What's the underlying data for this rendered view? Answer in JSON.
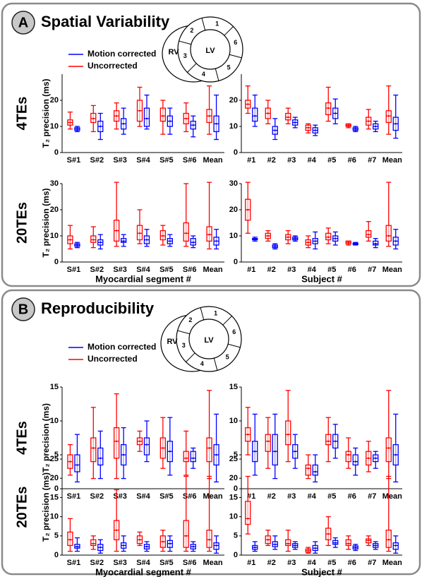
{
  "sections": [
    {
      "letter": "A",
      "title": "Spatial Variability",
      "rows": [
        "4TEs",
        "20TEs"
      ],
      "diagram": {
        "rv": "RV",
        "lv": "LV",
        "segments": [
          1,
          2,
          3,
          4,
          5,
          6
        ]
      }
    },
    {
      "letter": "B",
      "title": "Reproducibility",
      "rows": [
        "4TEs",
        "20TEs"
      ],
      "diagram": {
        "rv": "RV",
        "lv": "LV",
        "segments": [
          1,
          2,
          3,
          4,
          5,
          6
        ]
      }
    }
  ],
  "chart_data": [
    {
      "type": "box",
      "ylabel": "T₂ precision (ms)",
      "legend": "upper left",
      "categories": [
        "S#1",
        "S#2",
        "S#3",
        "S#4",
        "S#5",
        "S#6",
        "Mean"
      ],
      "series": [
        {
          "name": "Motion corrected",
          "color": "#0000ff",
          "values": [
            [
              8,
              8.5,
              9,
              9.5,
              10
            ],
            [
              5,
              8,
              10,
              12,
              15
            ],
            [
              7,
              9,
              11,
              13,
              17
            ],
            [
              9,
              10,
              13,
              17,
              22
            ],
            [
              7,
              10,
              12,
              14,
              17
            ],
            [
              6,
              9,
              10.5,
              12,
              14
            ],
            [
              5,
              8,
              11,
              14,
              22
            ]
          ]
        },
        {
          "name": "Uncorrected",
          "color": "#ff0000",
          "values": [
            [
              9,
              10.5,
              11.5,
              12.5,
              15.5
            ],
            [
              8,
              11.5,
              13,
              15,
              18
            ],
            [
              9,
              12,
              14,
              16,
              19
            ],
            [
              10,
              12,
              16,
              20,
              25
            ],
            [
              7,
              12,
              14,
              17,
              20
            ],
            [
              8,
              11,
              13,
              15,
              19
            ],
            [
              7,
              11.5,
              14,
              16.5,
              25.5
            ]
          ]
        }
      ],
      "ylim": [
        0,
        30
      ],
      "yticks": [
        0,
        10,
        20
      ]
    },
    {
      "type": "box",
      "categories": [
        "#1",
        "#2",
        "#3",
        "#4",
        "#5",
        "#6",
        "#7",
        "Mean"
      ],
      "series": [
        {
          "color": "#0000ff",
          "values": [
            [
              10,
              12,
              14,
              17,
              22
            ],
            [
              5,
              7,
              8.5,
              10,
              13
            ],
            [
              9.5,
              10.5,
              11.5,
              12.5,
              13.5
            ],
            [
              6.5,
              7.5,
              8.5,
              9.5,
              10.5
            ],
            [
              11,
              13,
              15,
              17,
              20.5
            ],
            [
              8,
              8.5,
              9,
              9.5,
              10
            ],
            [
              8,
              9,
              10,
              11,
              12
            ],
            [
              5.5,
              8.5,
              11,
              13.5,
              22
            ]
          ]
        },
        {
          "color": "#ff0000",
          "values": [
            [
              15,
              17,
              18.5,
              20,
              25.5
            ],
            [
              11,
              13,
              15,
              17,
              20
            ],
            [
              11,
              12.5,
              13.5,
              15,
              17
            ],
            [
              7.5,
              8.5,
              9.5,
              10.5,
              11
            ],
            [
              12,
              14.5,
              17,
              19,
              25
            ],
            [
              9.5,
              10,
              10.3,
              10.8,
              11
            ],
            [
              9,
              10.5,
              12,
              13.5,
              16.5
            ],
            [
              7,
              11.5,
              14,
              16,
              25.5
            ]
          ]
        }
      ],
      "ylim": [
        0,
        30
      ],
      "yticks": [
        0,
        10,
        20
      ]
    },
    {
      "type": "box",
      "ylabel": "T₂ precision (ms)",
      "xlabel": "Myocardial segment #",
      "categories": [
        "S#1",
        "S#2",
        "S#3",
        "S#4",
        "S#5",
        "S#6",
        "Mean"
      ],
      "series": [
        {
          "color": "#0000ff",
          "values": [
            [
              5.5,
              6,
              6.5,
              7,
              7.5
            ],
            [
              5,
              6.5,
              7.5,
              8.5,
              10.5
            ],
            [
              6,
              7.5,
              8,
              9,
              10.5
            ],
            [
              6,
              7,
              8.5,
              10,
              12.5
            ],
            [
              6,
              7,
              8,
              9,
              10.5
            ],
            [
              5.5,
              6.5,
              7.5,
              9,
              10
            ],
            [
              5,
              6.5,
              8,
              9.5,
              12.5
            ]
          ]
        },
        {
          "color": "#ff0000",
          "values": [
            [
              5,
              7,
              8.5,
              10,
              14
            ],
            [
              5.5,
              7.5,
              8.5,
              10,
              13.5
            ],
            [
              6,
              8,
              12,
              16,
              30.5
            ],
            [
              7,
              8.5,
              11,
              14,
              20
            ],
            [
              6.5,
              8.5,
              10,
              12,
              14
            ],
            [
              6,
              8,
              11,
              15,
              30
            ],
            [
              5,
              8,
              10.5,
              13.5,
              30.5
            ]
          ]
        }
      ],
      "ylim": [
        0,
        30
      ],
      "yticks": [
        0,
        10,
        20,
        30
      ]
    },
    {
      "type": "box",
      "xlabel": "Subject #",
      "categories": [
        "#1",
        "#2",
        "#3",
        "#4",
        "#5",
        "#6",
        "#7",
        "Mean"
      ],
      "series": [
        {
          "color": "#0000ff",
          "values": [
            [
              8,
              8.5,
              8.8,
              9,
              9.5
            ],
            [
              5,
              5.5,
              6,
              6.5,
              7
            ],
            [
              8,
              8.5,
              9,
              9.5,
              10
            ],
            [
              5,
              7,
              8,
              9,
              11.5
            ],
            [
              6.5,
              8,
              9,
              10,
              11.5
            ],
            [
              6.5,
              6.7,
              7,
              7.2,
              7.5
            ],
            [
              5.5,
              6.5,
              7,
              8,
              9
            ],
            [
              5,
              6.5,
              8,
              9.5,
              12.5
            ]
          ]
        },
        {
          "color": "#ff0000",
          "values": [
            [
              11,
              16,
              20,
              24,
              30.5
            ],
            [
              8,
              9,
              10,
              11,
              12
            ],
            [
              7,
              8.5,
              9.5,
              10.5,
              12
            ],
            [
              5.5,
              6.5,
              7.5,
              8.5,
              10
            ],
            [
              7,
              8.5,
              9.5,
              11,
              13
            ],
            [
              6.5,
              7,
              7.5,
              8,
              8
            ],
            [
              8,
              9.5,
              10.5,
              12,
              15.5
            ],
            [
              6,
              8,
              10,
              14,
              30.5
            ]
          ]
        }
      ],
      "ylim": [
        0,
        30
      ],
      "yticks": [
        0,
        10,
        20,
        30
      ]
    },
    {
      "type": "box",
      "ylabel": "T₂ precision (ms)",
      "legend": "upper left",
      "categories": [
        "S#1",
        "S#2",
        "S#3",
        "S#4",
        "S#5",
        "S#6",
        "Mean"
      ],
      "series": [
        {
          "name": "Motion corrected",
          "color": "#0000ff",
          "values": [
            [
              1,
              2.5,
              3.5,
              5,
              8
            ],
            [
              1.5,
              3.5,
              4.5,
              6,
              8.5
            ],
            [
              1.5,
              3.5,
              5,
              6.5,
              9
            ],
            [
              4,
              5,
              6.5,
              7.5,
              10
            ],
            [
              2,
              4,
              5.5,
              7,
              10.5
            ],
            [
              3,
              4,
              4.5,
              5.5,
              6
            ],
            [
              1,
              3.5,
              5,
              6.5,
              11
            ]
          ]
        },
        {
          "name": "Uncorrected",
          "color": "#ff0000",
          "values": [
            [
              2,
              3,
              4,
              5,
              6.5
            ],
            [
              1.5,
              4,
              6,
              7.5,
              12
            ],
            [
              1.5,
              4.5,
              7,
              9,
              14
            ],
            [
              5.5,
              6.5,
              7,
              7.5,
              8.5
            ],
            [
              3,
              4.5,
              6,
              7.5,
              10.5
            ],
            [
              2,
              4,
              4.5,
              5.5,
              8.5
            ],
            [
              1.5,
              4,
              6,
              7.5,
              14.5
            ]
          ]
        }
      ],
      "ylim": [
        0,
        15
      ],
      "yticks": [
        0,
        5,
        10,
        15
      ]
    },
    {
      "type": "box",
      "categories": [
        "#1",
        "#2",
        "#3",
        "#4",
        "#5",
        "#6",
        "#7",
        "Mean"
      ],
      "series": [
        {
          "color": "#0000ff",
          "values": [
            [
              2,
              4,
              5.5,
              7,
              11
            ],
            [
              1.5,
              3.5,
              5.5,
              8,
              11
            ],
            [
              3,
              4.5,
              5.5,
              6.5,
              8
            ],
            [
              1,
              2,
              2.5,
              3.5,
              5
            ],
            [
              4.5,
              6,
              7,
              8,
              9.5
            ],
            [
              2,
              3.5,
              4,
              5,
              6
            ],
            [
              3,
              4,
              4.5,
              5,
              5.5
            ],
            [
              1,
              3.5,
              5,
              6.5,
              11
            ]
          ]
        },
        {
          "color": "#ff0000",
          "values": [
            [
              5,
              7,
              8,
              9,
              12
            ],
            [
              3,
              5.5,
              7,
              8,
              10.5
            ],
            [
              4,
              6.5,
              8,
              10,
              14.5
            ],
            [
              1.5,
              2,
              3,
              3.5,
              5
            ],
            [
              4,
              6.5,
              7,
              8,
              10.5
            ],
            [
              3,
              4,
              5,
              5.5,
              7.5
            ],
            [
              2.5,
              3.5,
              4.5,
              5.5,
              7
            ],
            [
              1.5,
              4,
              6,
              7.5,
              14.5
            ]
          ]
        }
      ],
      "ylim": [
        0,
        15
      ],
      "yticks": [
        0,
        5,
        10,
        15
      ]
    },
    {
      "type": "box",
      "ylabel": "T₂ precision (ms)",
      "xlabel": "Myocardial segment #",
      "categories": [
        "S#1",
        "S#2",
        "S#3",
        "S#4",
        "S#5",
        "S#6",
        "Mean"
      ],
      "series": [
        {
          "color": "#0000ff",
          "values": [
            [
              1,
              1.8,
              2.2,
              2.8,
              4.5
            ],
            [
              0.5,
              1.2,
              2,
              2.8,
              4
            ],
            [
              1,
              1.8,
              2.5,
              3.2,
              5
            ],
            [
              1,
              1.6,
              2.2,
              2.8,
              3.5
            ],
            [
              1,
              2,
              3,
              3.8,
              5
            ],
            [
              1,
              1.6,
              2.2,
              2.8,
              3.5
            ],
            [
              0.5,
              1.5,
              2.5,
              3.2,
              5
            ]
          ]
        },
        {
          "color": "#ff0000",
          "values": [
            [
              1,
              2.5,
              4,
              6,
              9.5
            ],
            [
              1.5,
              2.5,
              3,
              4,
              5
            ],
            [
              1,
              4,
              6.5,
              9,
              17
            ],
            [
              2.5,
              3,
              4,
              5,
              6
            ],
            [
              1,
              2,
              3.5,
              5,
              6.5
            ],
            [
              1,
              2,
              5,
              9,
              20.5
            ],
            [
              1,
              2,
              4,
              6.5,
              20.5
            ]
          ]
        }
      ],
      "ylim": [
        0,
        25
      ],
      "yticks": [
        0,
        5,
        10,
        15,
        20,
        25
      ]
    },
    {
      "type": "box",
      "xlabel": "Subject #",
      "categories": [
        "#1",
        "#2",
        "#3",
        "#4",
        "#5",
        "#6",
        "#7",
        "Mean"
      ],
      "series": [
        {
          "color": "#0000ff",
          "values": [
            [
              1,
              1.5,
              2,
              2.5,
              3.5
            ],
            [
              1.5,
              2.2,
              2.8,
              3.5,
              5
            ],
            [
              1.5,
              2,
              2.5,
              3,
              3.5
            ],
            [
              0.5,
              1.2,
              1.8,
              2.5,
              3.5
            ],
            [
              2,
              2.8,
              3.2,
              3.8,
              4.5
            ],
            [
              1.2,
              1.6,
              2,
              2.4,
              2.8
            ],
            [
              1.5,
              2,
              2.5,
              3,
              3.5
            ],
            [
              0.5,
              1.5,
              2.5,
              3.2,
              5
            ]
          ]
        },
        {
          "color": "#ff0000",
          "values": [
            [
              5.5,
              8,
              9.5,
              14,
              20.5
            ],
            [
              2.5,
              3,
              4,
              5,
              6.5
            ],
            [
              1,
              2.5,
              3,
              4,
              6.5
            ],
            [
              0.5,
              0.8,
              1.2,
              1.6,
              2
            ],
            [
              2.5,
              4,
              5.5,
              7,
              10
            ],
            [
              1.5,
              2.5,
              3,
              4,
              5
            ],
            [
              2.5,
              3.2,
              3.8,
              4.2,
              5
            ],
            [
              1,
              2,
              4,
              6.5,
              20.5
            ]
          ]
        }
      ],
      "ylim": [
        0,
        25
      ],
      "yticks": [
        0,
        5,
        10,
        15,
        20,
        25
      ]
    }
  ]
}
